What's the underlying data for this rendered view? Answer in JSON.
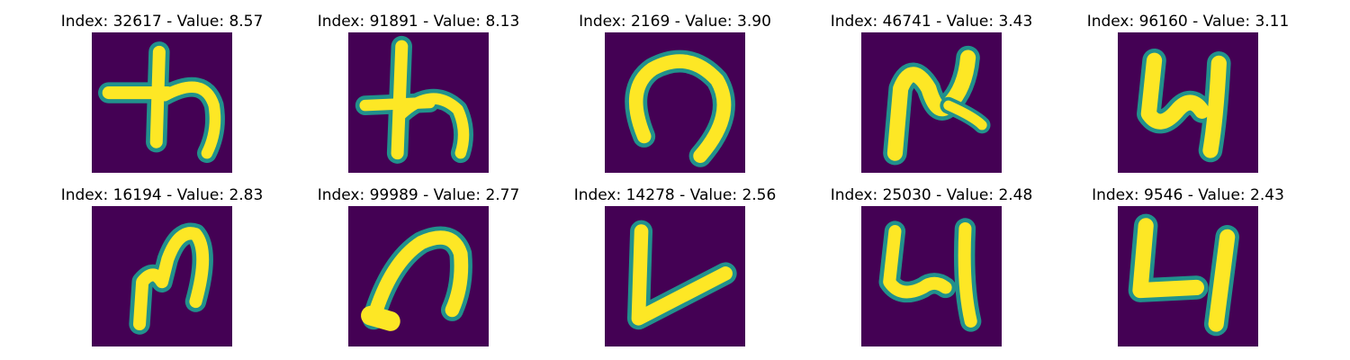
{
  "colors": {
    "background": "#440154",
    "stroke_core": "#fde725",
    "stroke_edge": "#21918c",
    "stroke_halo": "#3b528b"
  },
  "panels": [
    {
      "title": "Index: 32617 - Value: 8.57",
      "glyph": "handwritten-character-ta-like"
    },
    {
      "title": "Index: 91891 - Value: 8.13",
      "glyph": "handwritten-character-ta-like"
    },
    {
      "title": "Index: 2169 - Value: 3.90",
      "glyph": "handwritten-character-arch"
    },
    {
      "title": "Index: 46741 - Value: 3.43",
      "glyph": "handwritten-character-n-shape"
    },
    {
      "title": "Index: 96160 - Value: 3.11",
      "glyph": "handwritten-character-4-like"
    },
    {
      "title": "Index: 16194 - Value: 2.83",
      "glyph": "handwritten-character-m-shape"
    },
    {
      "title": "Index: 99989 - Value: 2.77",
      "glyph": "handwritten-character-arch"
    },
    {
      "title": "Index: 14278 - Value: 2.56",
      "glyph": "handwritten-character-v-shape"
    },
    {
      "title": "Index: 25030 - Value: 2.48",
      "glyph": "handwritten-character-4-like"
    },
    {
      "title": "Index: 9546 - Value: 2.43",
      "glyph": "handwritten-character-4-like"
    }
  ]
}
